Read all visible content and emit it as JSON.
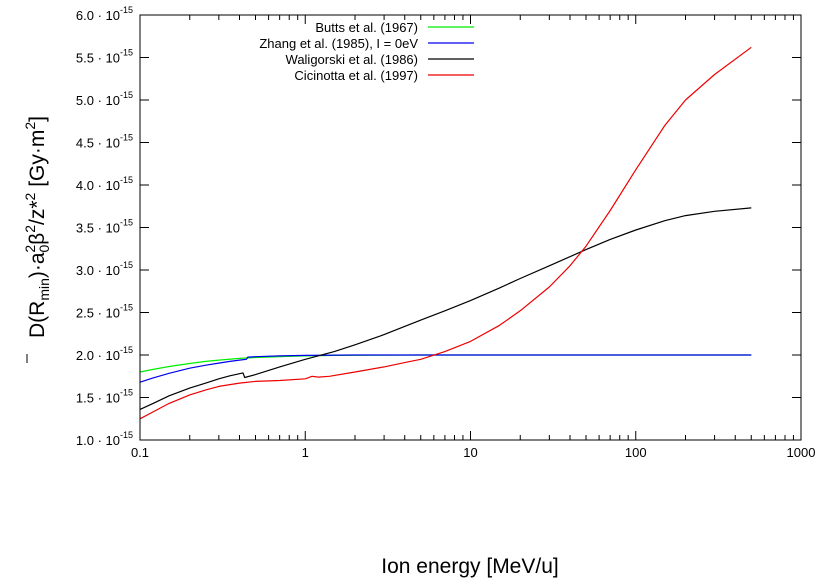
{
  "chart_data": {
    "type": "line",
    "xlabel": "Ion energy [MeV/u]",
    "ylabel_parts": [
      "D(R",
      "min",
      ")·a",
      "0",
      "2",
      "β",
      "2",
      "/z*",
      "2",
      " [Gy·m",
      "2",
      "]"
    ],
    "x_scale": "log",
    "xlim": [
      0.1,
      1000
    ],
    "ylim": [
      1e-15,
      6e-15
    ],
    "grid": false,
    "legend_position": "top-right",
    "x_ticks": [
      0.1,
      1,
      10,
      100,
      1000
    ],
    "x_tick_labels": [
      "0.1",
      "1",
      "10",
      "100",
      "1000"
    ],
    "y_ticks": [
      1e-15,
      1.5e-15,
      2e-15,
      2.5e-15,
      3e-15,
      3.5e-15,
      4e-15,
      4.5e-15,
      5e-15,
      5.5e-15,
      6e-15
    ],
    "y_tick_mantissas": [
      "1.0",
      "1.5",
      "2.0",
      "2.5",
      "3.0",
      "3.5",
      "4.0",
      "4.5",
      "5.0",
      "5.5",
      "6.0"
    ],
    "y_tick_base": "10",
    "y_tick_exponent": "-15",
    "series": [
      {
        "name": "Butts et al. (1967)",
        "color": "#00ee00",
        "x": [
          0.1,
          0.12,
          0.15,
          0.2,
          0.25,
          0.3,
          0.4,
          0.5,
          0.7,
          1,
          1.5,
          2,
          3,
          5,
          10,
          20,
          50,
          100,
          200,
          500
        ],
        "y": [
          1.8e-15,
          1.83e-15,
          1.865e-15,
          1.9e-15,
          1.925e-15,
          1.94e-15,
          1.96e-15,
          1.97e-15,
          1.98e-15,
          1.99e-15,
          1.995e-15,
          1.997e-15,
          1.998e-15,
          2e-15,
          2e-15,
          2e-15,
          2e-15,
          2e-15,
          2e-15,
          2e-15
        ]
      },
      {
        "name": "Zhang et al. (1985), I = 0eV",
        "color": "#0000ee",
        "x": [
          0.1,
          0.12,
          0.15,
          0.2,
          0.25,
          0.3,
          0.35,
          0.4,
          0.44,
          0.45,
          0.5,
          0.7,
          1,
          2,
          5,
          10,
          20,
          50,
          100,
          200,
          500
        ],
        "y": [
          1.68e-15,
          1.73e-15,
          1.785e-15,
          1.845e-15,
          1.88e-15,
          1.905e-15,
          1.925e-15,
          1.94e-15,
          1.95e-15,
          1.975e-15,
          1.98e-15,
          1.99e-15,
          1.995e-15,
          2e-15,
          2e-15,
          2e-15,
          2e-15,
          2e-15,
          2e-15,
          2e-15,
          2e-15
        ]
      },
      {
        "name": "Waligorski et al. (1986)",
        "color": "#000000",
        "x": [
          0.1,
          0.12,
          0.15,
          0.2,
          0.25,
          0.3,
          0.35,
          0.4,
          0.42,
          0.43,
          0.5,
          0.7,
          1,
          1.5,
          2,
          3,
          5,
          7,
          10,
          15,
          20,
          30,
          50,
          70,
          100,
          150,
          200,
          300,
          500
        ],
        "y": [
          1.36e-15,
          1.43e-15,
          1.52e-15,
          1.61e-15,
          1.67e-15,
          1.72e-15,
          1.755e-15,
          1.78e-15,
          1.79e-15,
          1.735e-15,
          1.77e-15,
          1.86e-15,
          1.95e-15,
          2.04e-15,
          2.12e-15,
          2.24e-15,
          2.41e-15,
          2.52e-15,
          2.64e-15,
          2.79e-15,
          2.9e-15,
          3.05e-15,
          3.24e-15,
          3.36e-15,
          3.47e-15,
          3.58e-15,
          3.64e-15,
          3.69e-15,
          3.73e-15
        ]
      },
      {
        "name": "Cicinotta et al. (1997)",
        "color": "#ee0000",
        "x": [
          0.1,
          0.12,
          0.15,
          0.2,
          0.25,
          0.3,
          0.4,
          0.5,
          0.7,
          1,
          1.1,
          1.2,
          1.4,
          2,
          3,
          4,
          5,
          7,
          10,
          15,
          20,
          30,
          40,
          50,
          70,
          100,
          150,
          200,
          300,
          500
        ],
        "y": [
          1.25e-15,
          1.33e-15,
          1.43e-15,
          1.53e-15,
          1.59e-15,
          1.63e-15,
          1.67e-15,
          1.69e-15,
          1.7e-15,
          1.72e-15,
          1.75e-15,
          1.74e-15,
          1.75e-15,
          1.8e-15,
          1.86e-15,
          1.91e-15,
          1.95e-15,
          2.04e-15,
          2.16e-15,
          2.35e-15,
          2.52e-15,
          2.8e-15,
          3.05e-15,
          3.28e-15,
          3.7e-15,
          4.18e-15,
          4.7e-15,
          5e-15,
          5.3e-15,
          5.62e-15
        ]
      }
    ]
  }
}
